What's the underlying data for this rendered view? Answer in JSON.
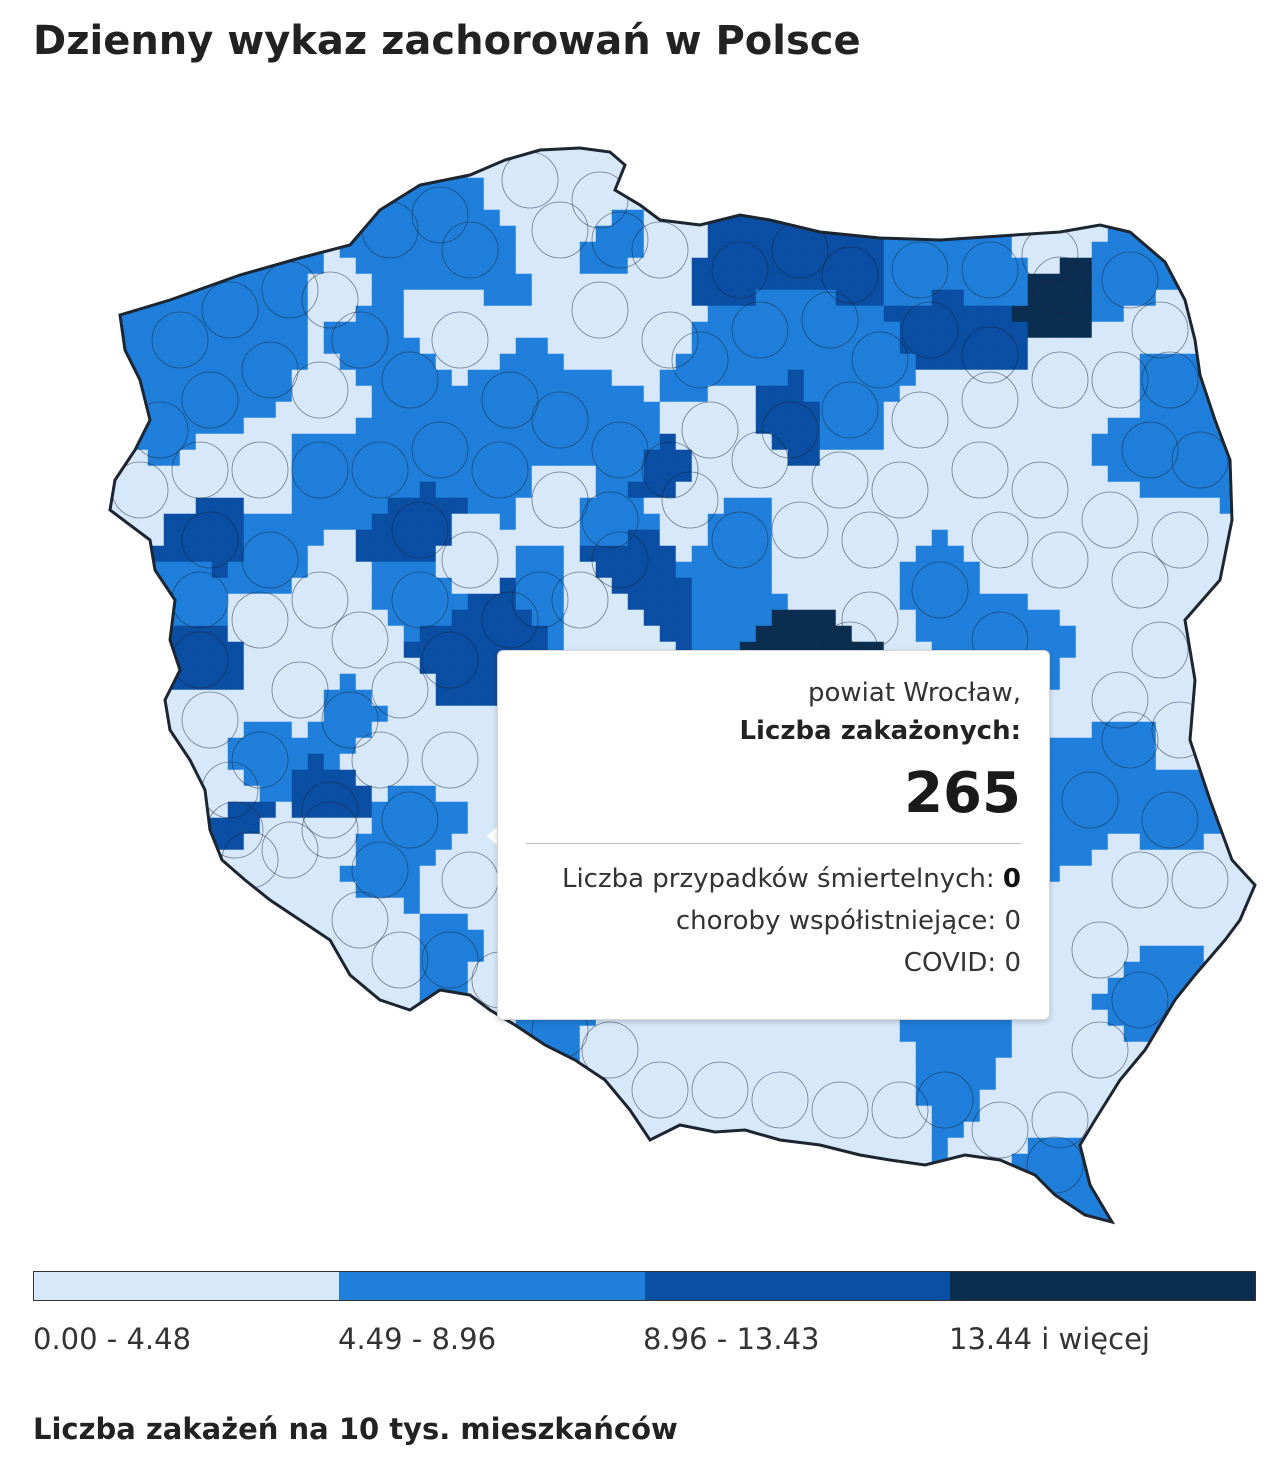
{
  "title": "Dzienny wykaz zachorowań w Polsce",
  "colors": {
    "bin1": "#d6e8fa",
    "bin2": "#1f7fdb",
    "bin3": "#0a4fa3",
    "bin4": "#0b2e50",
    "border": "#1c2530"
  },
  "tooltip": {
    "place": "powiat Wrocław,",
    "infected_label": "Liczba zakażonych:",
    "infected_value": "265",
    "deaths_label": "Liczba przypadków śmiertelnych: ",
    "deaths_value": "0",
    "comorbid": "choroby współistniejące: 0",
    "covid": "COVID: 0"
  },
  "legend": {
    "ranges": [
      "0.00 - 4.48",
      "4.49 - 8.96",
      "8.96 - 13.43",
      "13.44 i więcej"
    ],
    "caption": "Liczba zakażeń na 10 tys. mieszkańców"
  }
}
